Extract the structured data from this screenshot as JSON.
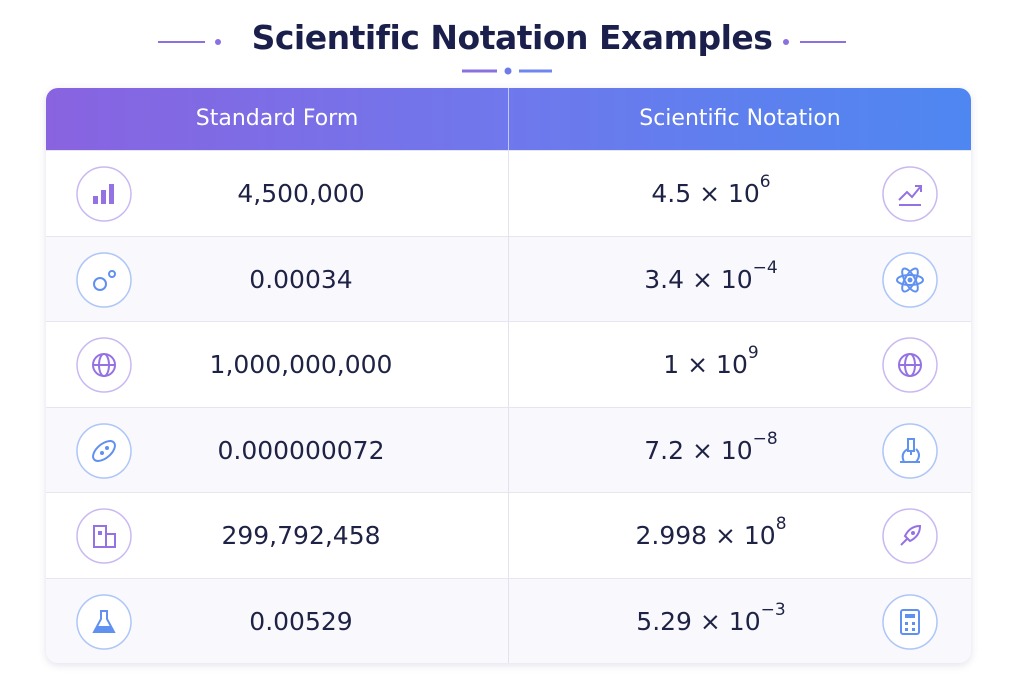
{
  "header": {
    "title": "Scientific Notation Examples"
  },
  "table": {
    "columns": [
      "Standard Form",
      "Scientific Notation"
    ],
    "rows": [
      {
        "standard": "4,500,000",
        "scientific": {
          "base": "4.5 × 10",
          "exponent": "6"
        }
      },
      {
        "standard": "0.00034",
        "scientific": {
          "base": "3.4 × 10",
          "exponent": "−4"
        }
      },
      {
        "standard": "1,000,000,000",
        "scientific": {
          "base": "1 × 10",
          "exponent": "9"
        }
      },
      {
        "standard": "0.000000072",
        "scientific": {
          "base": "7.2 × 10",
          "exponent": "−8"
        }
      },
      {
        "standard": "299,792,458",
        "scientific": {
          "base": "2.998 × 10",
          "exponent": "8"
        }
      },
      {
        "standard": "0.00529",
        "scientific": {
          "base": "5.29 × 10",
          "exponent": "−3"
        }
      }
    ]
  }
}
